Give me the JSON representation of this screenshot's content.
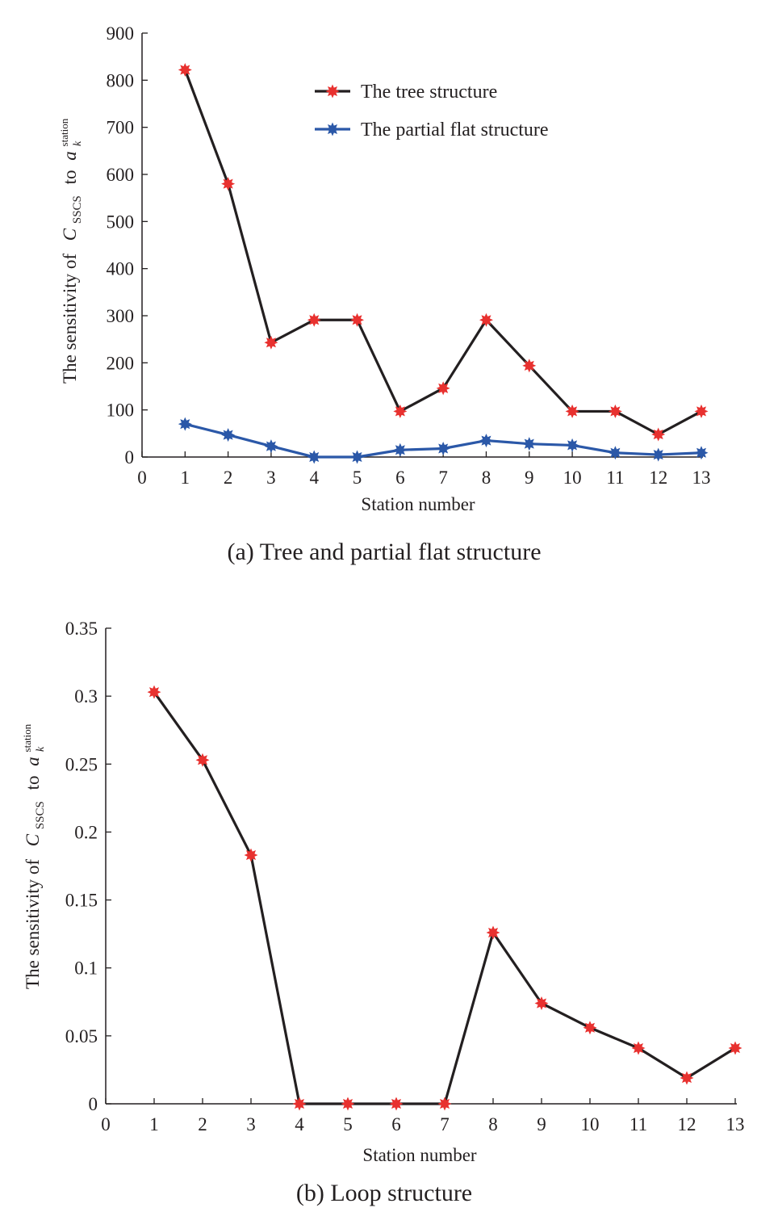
{
  "chart_data": [
    {
      "type": "line",
      "caption": "(a) Tree and partial flat structure",
      "xlabel": "Station number",
      "ylabel": {
        "prefix": "The sensitivity of",
        "var": "C",
        "var_sub": "SSCS",
        "mid": "to",
        "var2": "a",
        "var2_sub": "k",
        "var2_sup": "station"
      },
      "xlim": [
        0,
        13
      ],
      "ylim": [
        0,
        900
      ],
      "xticks": [
        0,
        1,
        2,
        3,
        4,
        5,
        6,
        7,
        8,
        9,
        10,
        11,
        12,
        13
      ],
      "yticks": [
        0,
        100,
        200,
        300,
        400,
        500,
        600,
        700,
        800,
        900
      ],
      "ytick_labels": [
        "0",
        "100",
        "200",
        "300",
        "400",
        "500",
        "600",
        "700",
        "800",
        "900"
      ],
      "legend_position": "top-center",
      "series": [
        {
          "name": "The tree structure",
          "line_color": "#231f20",
          "marker_color": "#e8312f",
          "x": [
            1,
            2,
            3,
            4,
            5,
            6,
            7,
            8,
            9,
            10,
            11,
            12,
            13
          ],
          "y": [
            822,
            580,
            243,
            291,
            291,
            97,
            146,
            291,
            194,
            97,
            97,
            48,
            97
          ]
        },
        {
          "name": "The partial flat structure",
          "line_color": "#2b58a8",
          "marker_color": "#2b58a8",
          "x": [
            1,
            2,
            3,
            4,
            5,
            6,
            7,
            8,
            9,
            10,
            11,
            12,
            13
          ],
          "y": [
            70,
            47,
            23,
            0,
            0,
            15,
            18,
            35,
            28,
            25,
            9,
            5,
            9
          ]
        }
      ]
    },
    {
      "type": "line",
      "caption": "(b) Loop structure",
      "xlabel": "Station number",
      "ylabel": {
        "prefix": "The sensitivity of",
        "var": "C",
        "var_sub": "SSCS",
        "mid": "to",
        "var2": "a",
        "var2_sub": "k",
        "var2_sup": "station"
      },
      "xlim": [
        0,
        13
      ],
      "ylim": [
        0,
        0.35
      ],
      "xticks": [
        0,
        1,
        2,
        3,
        4,
        5,
        6,
        7,
        8,
        9,
        10,
        11,
        12,
        13
      ],
      "yticks": [
        0,
        0.05,
        0.1,
        0.15,
        0.2,
        0.25,
        0.3,
        0.35
      ],
      "ytick_labels": [
        "0",
        "0.05",
        "0.1",
        "0.15",
        "0.2",
        "0.25",
        "0.3",
        "0.35"
      ],
      "series": [
        {
          "line_color": "#231f20",
          "marker_color": "#e8312f",
          "x": [
            1,
            2,
            3,
            4,
            5,
            6,
            7,
            8,
            9,
            10,
            11,
            12,
            13
          ],
          "y": [
            0.303,
            0.253,
            0.183,
            0,
            0,
            0,
            0,
            0.126,
            0.074,
            0.056,
            0.041,
            0.019,
            0.041
          ]
        }
      ]
    }
  ]
}
